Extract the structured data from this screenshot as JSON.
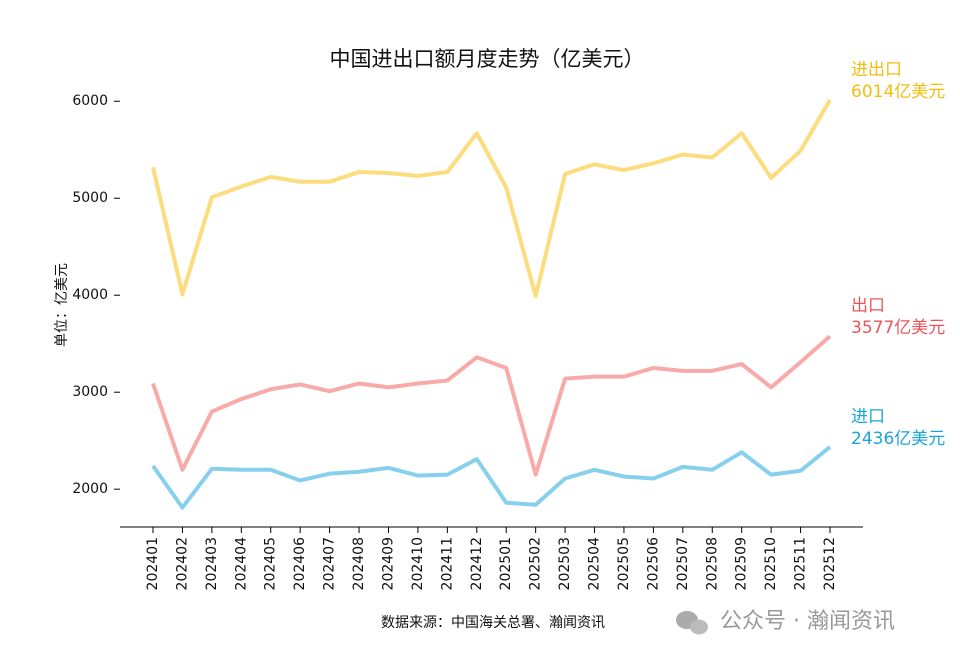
{
  "chart_data": {
    "type": "line",
    "title": "中国进出口额月度走势（亿美元）",
    "ylabel": "单位：亿美元",
    "source": "数据来源：中国海关总署、瀚闻资讯",
    "watermark": "公众号 · 瀚闻资讯",
    "categories": [
      "202401",
      "202402",
      "202403",
      "202404",
      "202405",
      "202406",
      "202407",
      "202408",
      "202409",
      "202410",
      "202411",
      "202412",
      "202501",
      "202502",
      "202503",
      "202504",
      "202505",
      "202506",
      "202507",
      "202508",
      "202509",
      "202510",
      "202511",
      "202512"
    ],
    "series": [
      {
        "name": "进出口",
        "color": "#fddc7e",
        "label_color": "#f2bd0c",
        "values": [
          5320,
          4010,
          5010,
          5120,
          5220,
          5170,
          5170,
          5270,
          5260,
          5230,
          5270,
          5670,
          5110,
          3990,
          5250,
          5350,
          5290,
          5360,
          5450,
          5420,
          5670,
          5210,
          5490,
          6014
        ],
        "value_labels": [
          null,
          null,
          null,
          null,
          null,
          null,
          null,
          null,
          null,
          null,
          null,
          null,
          null,
          null,
          null,
          null,
          null,
          null,
          null,
          null,
          null,
          null,
          null,
          "6014亿美元"
        ]
      },
      {
        "name": "出口",
        "color": "#f8aaa8",
        "label_color": "#e8555a",
        "values": [
          3090,
          2200,
          2800,
          2930,
          3030,
          3080,
          3010,
          3090,
          3050,
          3090,
          3120,
          3360,
          3250,
          2150,
          3140,
          3160,
          3160,
          3250,
          3220,
          3220,
          3290,
          3050,
          3310,
          3577
        ],
        "value_labels": [
          null,
          null,
          null,
          null,
          null,
          null,
          null,
          null,
          null,
          null,
          null,
          null,
          null,
          null,
          null,
          null,
          null,
          null,
          null,
          null,
          null,
          null,
          null,
          "3577亿美元"
        ]
      },
      {
        "name": "进口",
        "color": "#86d0ee",
        "label_color": "#19a5d6",
        "values": [
          2240,
          1810,
          2210,
          2200,
          2200,
          2090,
          2160,
          2180,
          2220,
          2140,
          2150,
          2310,
          1860,
          1840,
          2110,
          2200,
          2130,
          2110,
          2230,
          2200,
          2380,
          2150,
          2190,
          2436
        ],
        "value_labels": [
          null,
          null,
          null,
          null,
          null,
          null,
          null,
          null,
          null,
          null,
          null,
          null,
          null,
          null,
          null,
          null,
          null,
          null,
          null,
          null,
          null,
          null,
          null,
          "2436亿美元"
        ]
      }
    ],
    "ylim": [
      1610,
      6250
    ],
    "yticks": [
      2000,
      3000,
      4000,
      5000,
      6000
    ],
    "grid": false
  }
}
